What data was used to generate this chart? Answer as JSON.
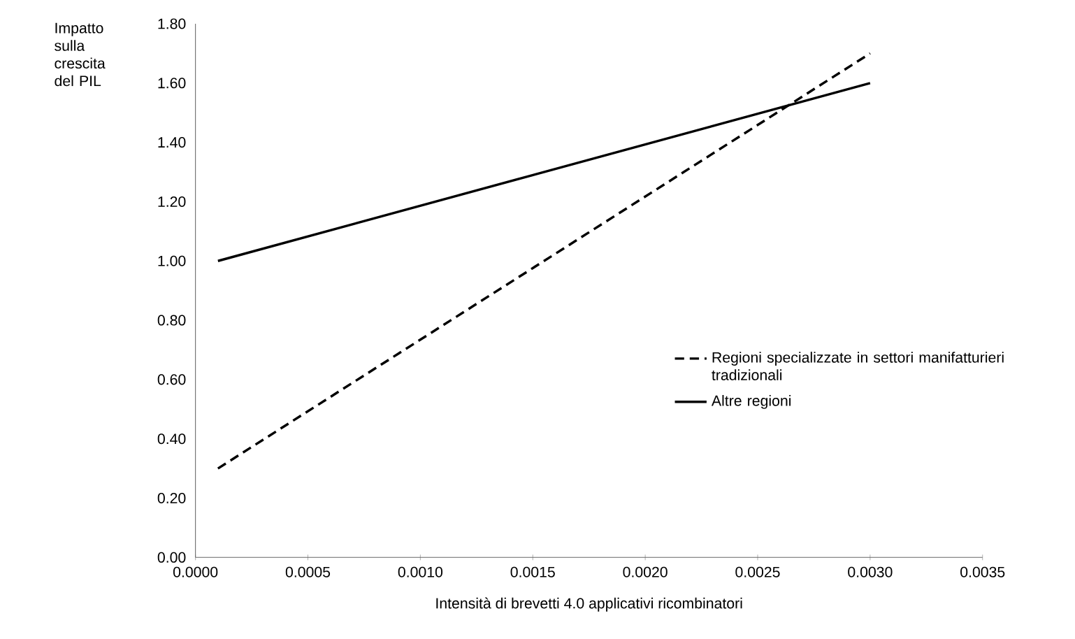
{
  "chart_data": {
    "type": "line",
    "xlabel": "Intensità di brevetti 4.0 applicativi ricombinatori",
    "ylabel": "Impatto sulla crescita del PIL",
    "xlim": [
      0,
      0.0035
    ],
    "xticks": [
      {
        "value": 0,
        "label": "0.0000"
      },
      {
        "value": 0.0005,
        "label": "0.0005"
      },
      {
        "value": 0.001,
        "label": "0.0010"
      },
      {
        "value": 0.0015,
        "label": "0.0015"
      },
      {
        "value": 0.002,
        "label": "0.0020"
      },
      {
        "value": 0.0025,
        "label": "0.0025"
      },
      {
        "value": 0.003,
        "label": "0.0030"
      },
      {
        "value": 0.0035,
        "label": "0.0035"
      }
    ],
    "ylim": [
      0,
      1.8
    ],
    "yticks": [
      {
        "value": 0,
        "label": "0.00"
      },
      {
        "value": 0.2,
        "label": "0.20"
      },
      {
        "value": 0.4,
        "label": "0.40"
      },
      {
        "value": 0.6,
        "label": "0.60"
      },
      {
        "value": 0.8,
        "label": "0.80"
      },
      {
        "value": 1.0,
        "label": "1.00"
      },
      {
        "value": 1.2,
        "label": "1.20"
      },
      {
        "value": 1.4,
        "label": "1.40"
      },
      {
        "value": 1.6,
        "label": "1.60"
      },
      {
        "value": 1.8,
        "label": "1.80"
      }
    ],
    "legend": "right",
    "x": [
      0.0001,
      0.003
    ],
    "series": [
      {
        "name": "Regioni specializzate in settori manifatturieri tradizionali",
        "color": "#000000",
        "line_style": "dashed",
        "values": [
          0.3,
          1.7
        ]
      },
      {
        "name": "Altre regioni",
        "color": "#000000",
        "line_style": "solid",
        "values": [
          1.0,
          1.6
        ]
      }
    ]
  }
}
